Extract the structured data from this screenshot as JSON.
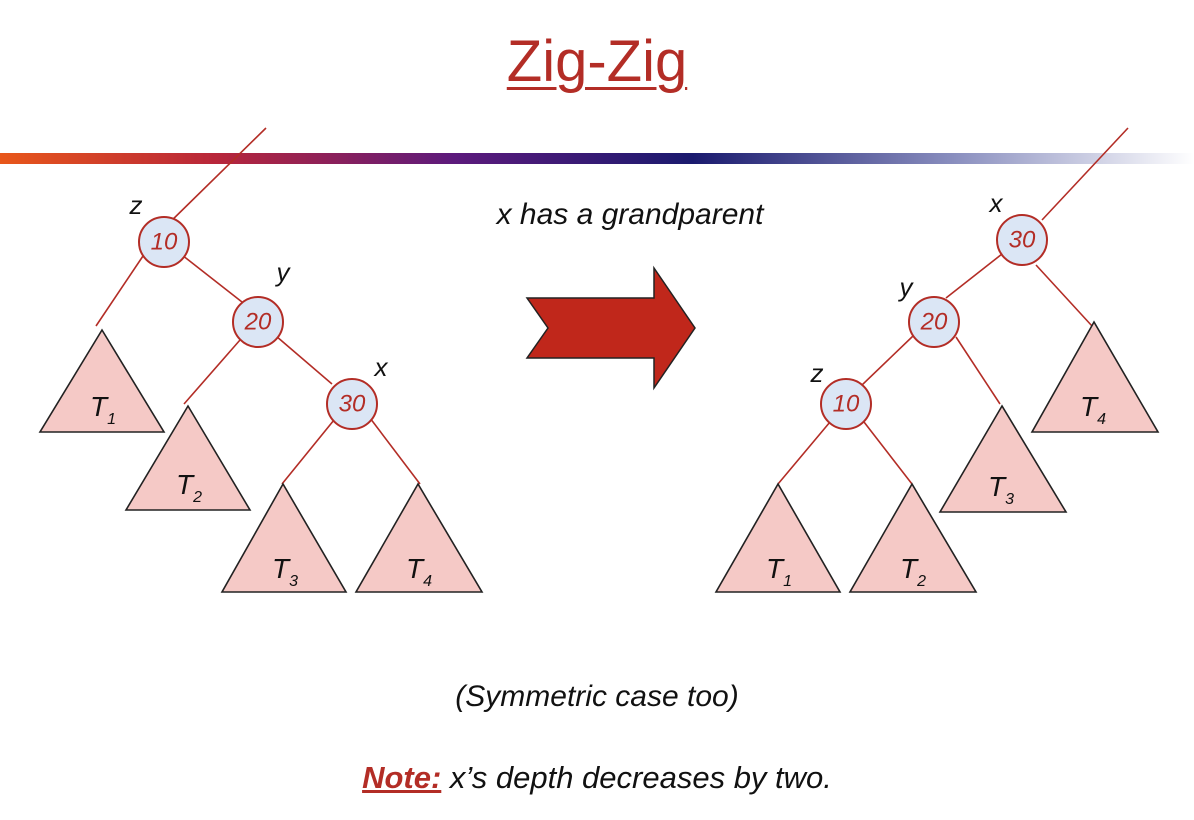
{
  "title": "Zig-Zig",
  "caption_top": "x has a grandparent",
  "caption_symmetric": "(Symmetric case too)",
  "note": {
    "label": "Note:",
    "text": "x’s depth decreases by two."
  },
  "colors": {
    "accent": "#b32d26",
    "edge": "#b32d26",
    "node_fill": "#dbe6f5",
    "subtree_fill": "#f5c9c6",
    "arrow_fill": "#c0271b"
  },
  "before": {
    "nodes": [
      {
        "key": "10",
        "label": "z"
      },
      {
        "key": "20",
        "label": "y"
      },
      {
        "key": "30",
        "label": "x"
      }
    ],
    "subtrees": [
      {
        "name": "T",
        "sub": "1"
      },
      {
        "name": "T",
        "sub": "2"
      },
      {
        "name": "T",
        "sub": "3"
      },
      {
        "name": "T",
        "sub": "4"
      }
    ]
  },
  "after": {
    "nodes": [
      {
        "key": "30",
        "label": "x"
      },
      {
        "key": "20",
        "label": "y"
      },
      {
        "key": "10",
        "label": "z"
      }
    ],
    "subtrees": [
      {
        "name": "T",
        "sub": "4"
      },
      {
        "name": "T",
        "sub": "3"
      },
      {
        "name": "T",
        "sub": "1"
      },
      {
        "name": "T",
        "sub": "2"
      }
    ]
  }
}
